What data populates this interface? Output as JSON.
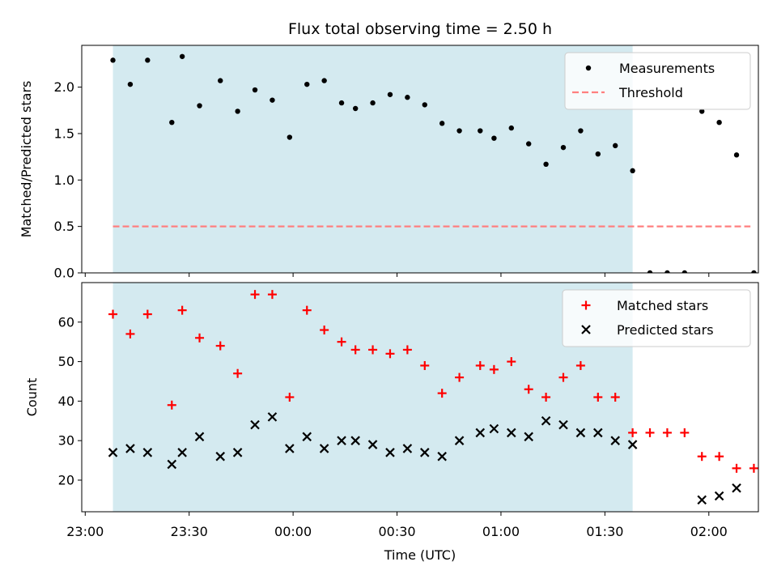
{
  "title": "Flux total observing time = 2.50 h",
  "colors": {
    "shade": "#d4eaf0",
    "measurement": "#000000",
    "threshold": "#ff7f7f",
    "matched": "#ff0000",
    "predicted": "#000000"
  },
  "chart_data": [
    {
      "type": "scatter",
      "ylabel": "Matched/Predicted stars",
      "xlabel": "",
      "ylim": [
        0,
        2.45
      ],
      "yticks": [
        0.0,
        0.5,
        1.0,
        1.5,
        2.0
      ],
      "ytick_labels": [
        "0.0",
        "0.5",
        "1.0",
        "1.5",
        "2.0"
      ],
      "shaded_region": {
        "x": [
          "23:08",
          "01:38"
        ]
      },
      "legend": {
        "placement": "top-right",
        "entries": [
          "Measurements",
          "Threshold"
        ]
      },
      "series": [
        {
          "name": "Measurements",
          "marker": "dot",
          "points": [
            [
              "23:08",
              2.29
            ],
            [
              "23:13",
              2.03
            ],
            [
              "23:18",
              2.29
            ],
            [
              "23:25",
              1.62
            ],
            [
              "23:28",
              2.33
            ],
            [
              "23:33",
              1.8
            ],
            [
              "23:39",
              2.07
            ],
            [
              "23:44",
              1.74
            ],
            [
              "23:49",
              1.97
            ],
            [
              "23:54",
              1.86
            ],
            [
              "23:59",
              1.46
            ],
            [
              "00:04",
              2.03
            ],
            [
              "00:09",
              2.07
            ],
            [
              "00:14",
              1.83
            ],
            [
              "00:18",
              1.77
            ],
            [
              "00:23",
              1.83
            ],
            [
              "00:28",
              1.92
            ],
            [
              "00:33",
              1.89
            ],
            [
              "00:38",
              1.81
            ],
            [
              "00:43",
              1.61
            ],
            [
              "00:48",
              1.53
            ],
            [
              "00:54",
              1.53
            ],
            [
              "00:58",
              1.45
            ],
            [
              "01:03",
              1.56
            ],
            [
              "01:08",
              1.39
            ],
            [
              "01:13",
              1.17
            ],
            [
              "01:18",
              1.35
            ],
            [
              "01:23",
              1.53
            ],
            [
              "01:28",
              1.28
            ],
            [
              "01:33",
              1.37
            ],
            [
              "01:38",
              1.1
            ],
            [
              "01:43",
              0.0
            ],
            [
              "01:48",
              0.0
            ],
            [
              "01:53",
              0.0
            ],
            [
              "01:58",
              1.74
            ],
            [
              "02:03",
              1.62
            ],
            [
              "02:08",
              1.27
            ],
            [
              "02:13",
              0.0
            ]
          ]
        },
        {
          "name": "Threshold",
          "style": "dashed",
          "points": [
            [
              "23:08",
              0.5
            ],
            [
              "02:12",
              0.5
            ]
          ]
        }
      ]
    },
    {
      "type": "scatter",
      "xlabel": "Time (UTC)",
      "ylabel": "Count",
      "ylim": [
        12,
        70
      ],
      "yticks": [
        20,
        30,
        40,
        50,
        60
      ],
      "xticks": [
        "23:00",
        "23:30",
        "00:00",
        "00:30",
        "01:00",
        "01:30",
        "02:00"
      ],
      "shaded_region": {
        "x": [
          "23:08",
          "01:38"
        ]
      },
      "legend": {
        "placement": "top-right",
        "entries": [
          "Matched stars",
          "Predicted stars"
        ]
      },
      "series": [
        {
          "name": "Matched stars",
          "marker": "plus",
          "points": [
            [
              "23:08",
              62
            ],
            [
              "23:13",
              57
            ],
            [
              "23:18",
              62
            ],
            [
              "23:25",
              39
            ],
            [
              "23:28",
              63
            ],
            [
              "23:33",
              56
            ],
            [
              "23:39",
              54
            ],
            [
              "23:44",
              47
            ],
            [
              "23:49",
              67
            ],
            [
              "23:54",
              67
            ],
            [
              "23:59",
              41
            ],
            [
              "00:04",
              63
            ],
            [
              "00:09",
              58
            ],
            [
              "00:14",
              55
            ],
            [
              "00:18",
              53
            ],
            [
              "00:23",
              53
            ],
            [
              "00:28",
              52
            ],
            [
              "00:33",
              53
            ],
            [
              "00:38",
              49
            ],
            [
              "00:43",
              42
            ],
            [
              "00:48",
              46
            ],
            [
              "00:54",
              49
            ],
            [
              "00:58",
              48
            ],
            [
              "01:03",
              50
            ],
            [
              "01:08",
              43
            ],
            [
              "01:13",
              41
            ],
            [
              "01:18",
              46
            ],
            [
              "01:23",
              49
            ],
            [
              "01:28",
              41
            ],
            [
              "01:33",
              41
            ],
            [
              "01:38",
              32
            ],
            [
              "01:43",
              32
            ],
            [
              "01:48",
              32
            ],
            [
              "01:53",
              32
            ],
            [
              "01:58",
              26
            ],
            [
              "02:03",
              26
            ],
            [
              "02:08",
              23
            ],
            [
              "02:13",
              23
            ]
          ]
        },
        {
          "name": "Predicted stars",
          "marker": "x",
          "points": [
            [
              "23:08",
              27
            ],
            [
              "23:13",
              28
            ],
            [
              "23:18",
              27
            ],
            [
              "23:25",
              24
            ],
            [
              "23:28",
              27
            ],
            [
              "23:33",
              31
            ],
            [
              "23:39",
              26
            ],
            [
              "23:44",
              27
            ],
            [
              "23:49",
              34
            ],
            [
              "23:54",
              36
            ],
            [
              "23:59",
              28
            ],
            [
              "00:04",
              31
            ],
            [
              "00:09",
              28
            ],
            [
              "00:14",
              30
            ],
            [
              "00:18",
              30
            ],
            [
              "00:23",
              29
            ],
            [
              "00:28",
              27
            ],
            [
              "00:33",
              28
            ],
            [
              "00:38",
              27
            ],
            [
              "00:43",
              26
            ],
            [
              "00:48",
              30
            ],
            [
              "00:54",
              32
            ],
            [
              "00:58",
              33
            ],
            [
              "01:03",
              32
            ],
            [
              "01:08",
              31
            ],
            [
              "01:13",
              35
            ],
            [
              "01:18",
              34
            ],
            [
              "01:23",
              32
            ],
            [
              "01:28",
              32
            ],
            [
              "01:33",
              30
            ],
            [
              "01:38",
              29
            ],
            [
              "01:58",
              15
            ],
            [
              "02:03",
              16
            ],
            [
              "02:08",
              18
            ]
          ]
        }
      ]
    }
  ]
}
